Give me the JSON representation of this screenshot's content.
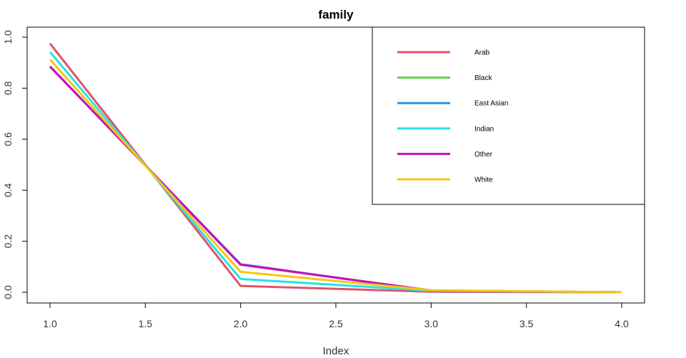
{
  "chart_data": {
    "type": "line",
    "title": "family",
    "xlabel": "Index",
    "ylabel": "",
    "xlim": [
      1.0,
      4.0
    ],
    "ylim": [
      0.0,
      1.0
    ],
    "x": [
      1,
      2,
      3,
      4
    ],
    "xticks": [
      "1.0",
      "1.5",
      "2.0",
      "2.5",
      "3.0",
      "3.5",
      "4.0"
    ],
    "yticks": [
      "0.0",
      "0.2",
      "0.4",
      "0.6",
      "0.8",
      "1.0"
    ],
    "legend_position": "top-right",
    "grid": false,
    "series": [
      {
        "name": "Arab",
        "color": "#df536b",
        "values": [
          0.975,
          0.025,
          0.002,
          0.0
        ]
      },
      {
        "name": "Black",
        "color": "#61d04f",
        "values": [
          0.885,
          0.108,
          0.007,
          0.0
        ]
      },
      {
        "name": "East Asian",
        "color": "#2297e6",
        "values": [
          0.885,
          0.11,
          0.005,
          0.0
        ]
      },
      {
        "name": "Indian",
        "color": "#28e2e5",
        "values": [
          0.942,
          0.052,
          0.006,
          0.0
        ]
      },
      {
        "name": "Other",
        "color": "#cd0bbc",
        "values": [
          0.885,
          0.108,
          0.007,
          0.0
        ]
      },
      {
        "name": "White",
        "color": "#f5c710",
        "values": [
          0.912,
          0.08,
          0.008,
          0.0
        ]
      }
    ]
  }
}
